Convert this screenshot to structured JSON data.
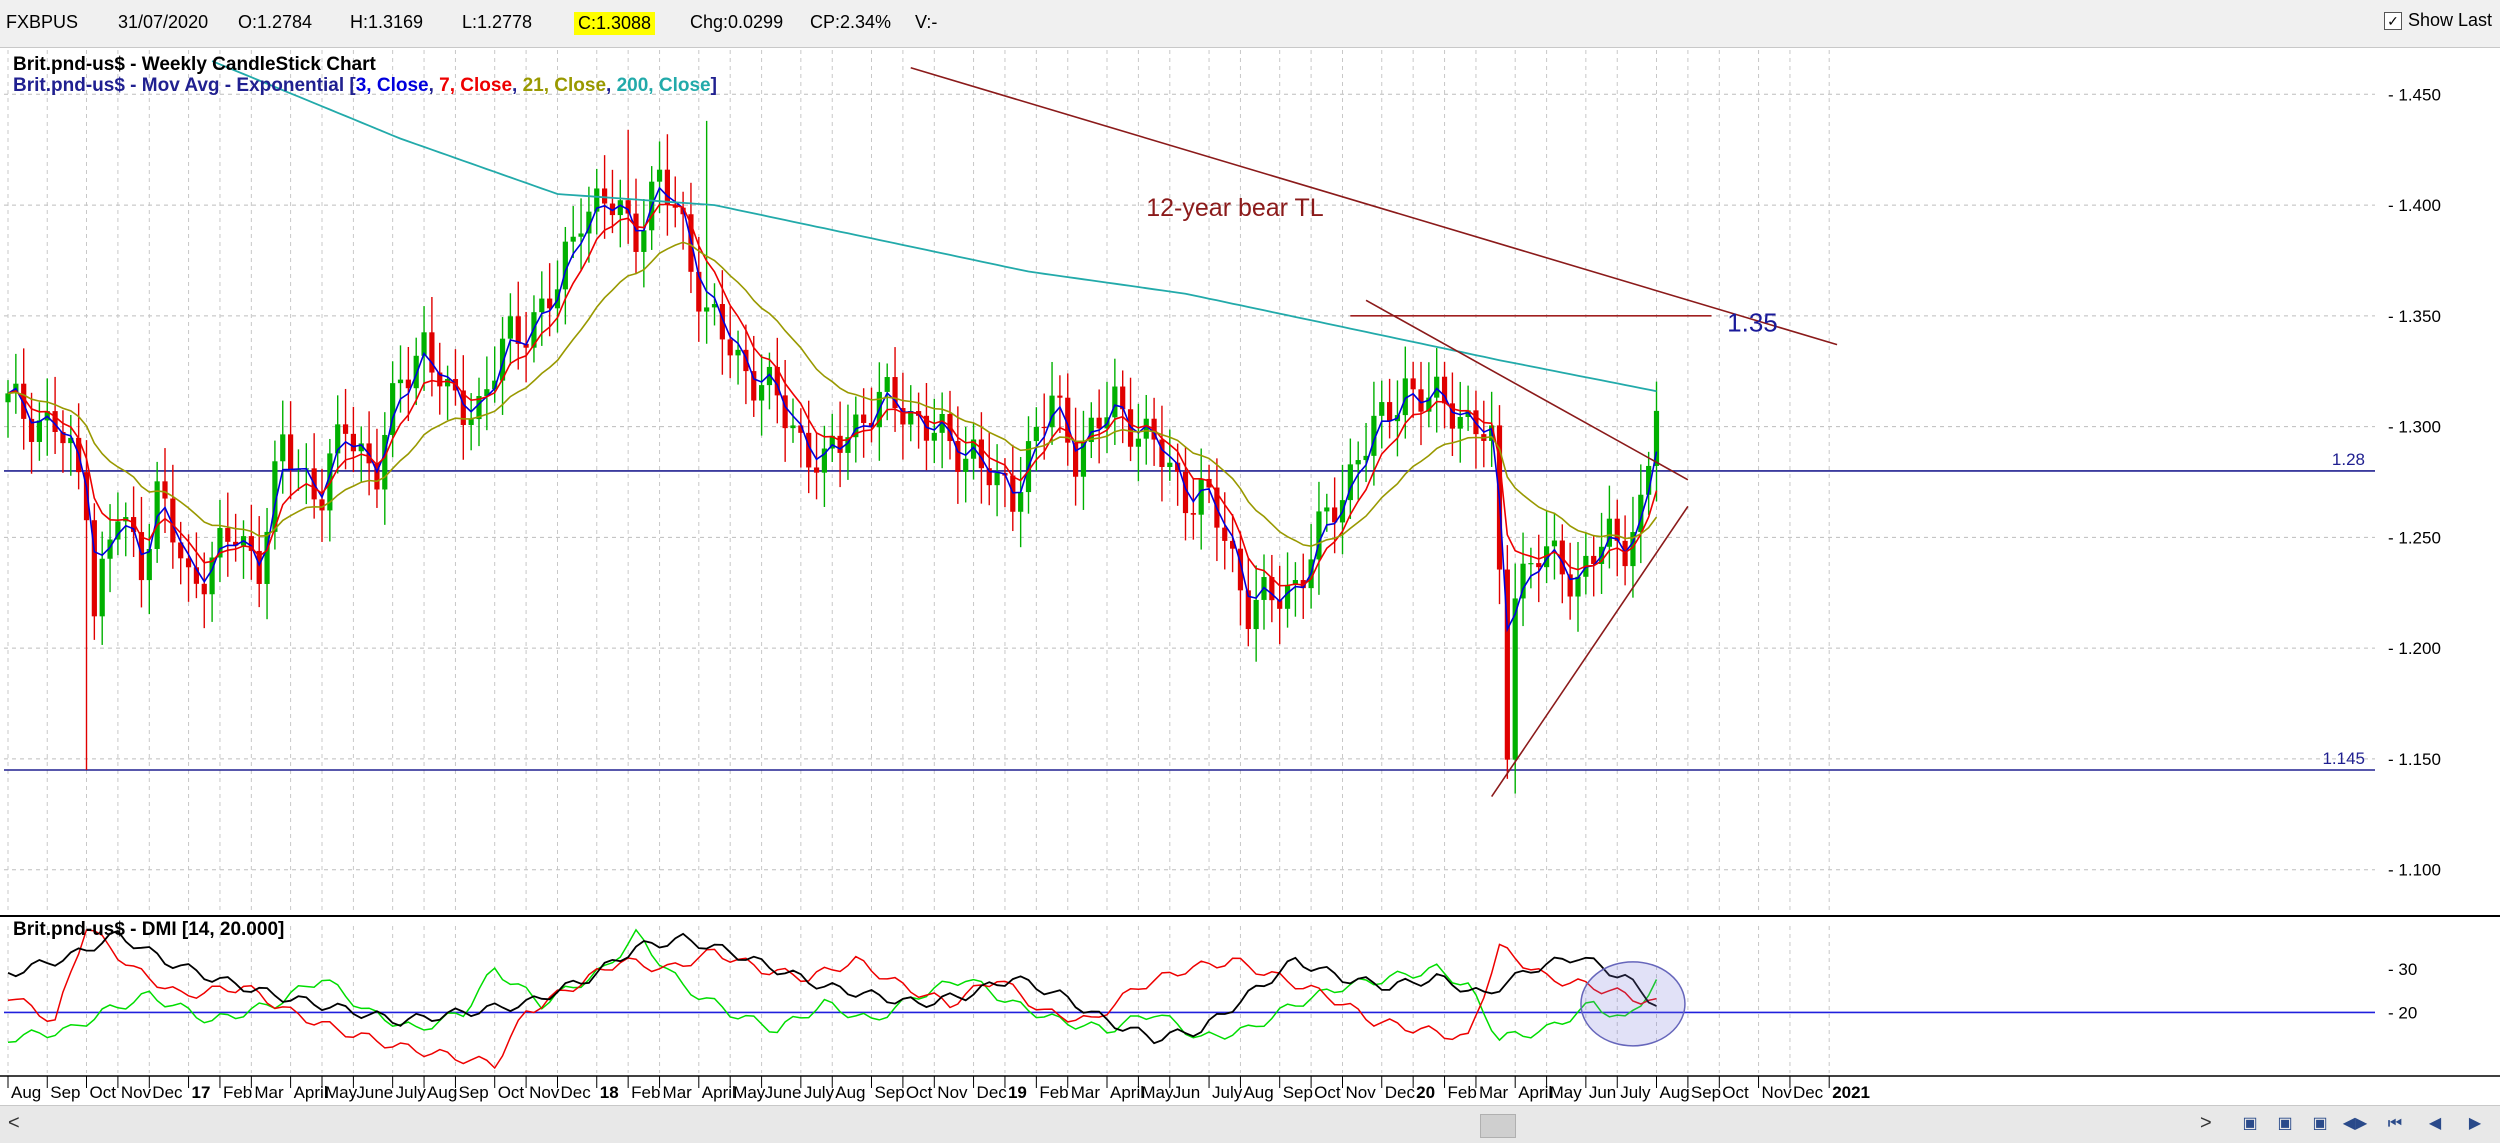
{
  "toolbar": {
    "symbol": "FXBPUS",
    "date": "31/07/2020",
    "open": "O:1.2784",
    "high": "H:1.3169",
    "low": "L:1.2778",
    "close": "C:1.3088",
    "change": "Chg:0.0299",
    "change_pct": "CP:2.34%",
    "volume": "V:-",
    "show_last_label": "Show Last",
    "show_last_checked": true
  },
  "colors": {
    "bull": "#00b000",
    "bear": "#e00000",
    "ema3": "#0000dd",
    "ema7": "#ee0000",
    "ema21": "#999900",
    "ema200": "#22aaaa",
    "hline": "#202090",
    "trend": "#8b1a1a",
    "dmi_plus": "#00dd00",
    "dmi_minus": "#ee0000",
    "adx": "#000000"
  },
  "chart_data": [
    {
      "type": "candlestick",
      "title": "Brit.pnd-us$ - Weekly CandleStick Chart",
      "subtitle_prefix": "Brit.pnd-us$ - Mov Avg - Exponential [",
      "subtitle_parts": [
        {
          "text": "3, Close",
          "color": "#0000dd"
        },
        {
          "text": ", ",
          "color": "#202090"
        },
        {
          "text": "7, Close",
          "color": "#ee0000"
        },
        {
          "text": ", ",
          "color": "#202090"
        },
        {
          "text": "21, Close",
          "color": "#999900"
        },
        {
          "text": ", ",
          "color": "#202090"
        },
        {
          "text": "200, Close",
          "color": "#22aaaa"
        }
      ],
      "subtitle_suffix": "]",
      "ylim": [
        1.08,
        1.47
      ],
      "yticks": [
        1.1,
        1.15,
        1.2,
        1.25,
        1.3,
        1.35,
        1.4,
        1.45
      ],
      "ytick_labels": [
        "1.100",
        "1.150",
        "1.200",
        "1.250",
        "1.300",
        "1.350",
        "1.400",
        "1.450"
      ],
      "anchors": [
        [
          0,
          1.31
        ],
        [
          6,
          1.3
        ],
        [
          10,
          1.27
        ],
        [
          11,
          1.22
        ],
        [
          14,
          1.26
        ],
        [
          17,
          1.24
        ],
        [
          19,
          1.27
        ],
        [
          23,
          1.23
        ],
        [
          29,
          1.25
        ],
        [
          32,
          1.24
        ],
        [
          35,
          1.29
        ],
        [
          40,
          1.27
        ],
        [
          43,
          1.3
        ],
        [
          47,
          1.28
        ],
        [
          50,
          1.32
        ],
        [
          53,
          1.34
        ],
        [
          56,
          1.31
        ],
        [
          60,
          1.31
        ],
        [
          64,
          1.34
        ],
        [
          67,
          1.35
        ],
        [
          70,
          1.36
        ],
        [
          73,
          1.4
        ],
        [
          76,
          1.4
        ],
        [
          80,
          1.39
        ],
        [
          83,
          1.41
        ],
        [
          86,
          1.39
        ],
        [
          89,
          1.35
        ],
        [
          93,
          1.33
        ],
        [
          96,
          1.32
        ],
        [
          100,
          1.3
        ],
        [
          104,
          1.28
        ],
        [
          107,
          1.3
        ],
        [
          111,
          1.31
        ],
        [
          114,
          1.31
        ],
        [
          117,
          1.3
        ],
        [
          120,
          1.29
        ],
        [
          123,
          1.29
        ],
        [
          126,
          1.27
        ],
        [
          128,
          1.27
        ],
        [
          130,
          1.29
        ],
        [
          133,
          1.31
        ],
        [
          136,
          1.29
        ],
        [
          139,
          1.3
        ],
        [
          141,
          1.31
        ],
        [
          144,
          1.3
        ],
        [
          146,
          1.29
        ],
        [
          148,
          1.28
        ],
        [
          150,
          1.27
        ],
        [
          152,
          1.27
        ],
        [
          155,
          1.25
        ],
        [
          158,
          1.22
        ],
        [
          161,
          1.22
        ],
        [
          164,
          1.23
        ],
        [
          167,
          1.25
        ],
        [
          170,
          1.27
        ],
        [
          172,
          1.29
        ],
        [
          175,
          1.3
        ],
        [
          178,
          1.32
        ],
        [
          181,
          1.31
        ],
        [
          184,
          1.31
        ],
        [
          187,
          1.3
        ],
        [
          189,
          1.29
        ],
        [
          190,
          1.23
        ],
        [
          191,
          1.16
        ],
        [
          192,
          1.23
        ],
        [
          195,
          1.24
        ],
        [
          198,
          1.24
        ],
        [
          200,
          1.23
        ],
        [
          202,
          1.24
        ],
        [
          204,
          1.25
        ],
        [
          206,
          1.25
        ],
        [
          208,
          1.26
        ],
        [
          209,
          1.28
        ],
        [
          210,
          1.31
        ]
      ],
      "candle_count": 211,
      "lows": [
        {
          "i": 10,
          "low": 1.145
        },
        {
          "i": 191,
          "low": 1.141
        }
      ],
      "highs": [
        {
          "i": 79,
          "high": 1.434
        },
        {
          "i": 89,
          "high": 1.438
        }
      ],
      "ema_periods": [
        3,
        7,
        21,
        200
      ],
      "ema200_anchors": [
        [
          26,
          1.465
        ],
        [
          50,
          1.43
        ],
        [
          70,
          1.405
        ],
        [
          90,
          1.4
        ],
        [
          110,
          1.385
        ],
        [
          130,
          1.37
        ],
        [
          150,
          1.36
        ],
        [
          170,
          1.345
        ],
        [
          190,
          1.33
        ],
        [
          210,
          1.316
        ]
      ],
      "horizontal_lines": [
        {
          "value": 1.28,
          "label": "1.28"
        },
        {
          "value": 1.145,
          "label": "1.145"
        }
      ],
      "annotations": [
        {
          "text": "12-year bear TL",
          "type": "trendline",
          "from": [
            115,
            1.462
          ],
          "to": [
            233,
            1.337
          ],
          "label_at": [
            145,
            1.395
          ]
        },
        {
          "text": "1.35",
          "type": "resistance",
          "from": [
            171,
            1.35
          ],
          "to": [
            217,
            1.35
          ],
          "label_at": [
            219,
            1.343
          ]
        },
        {
          "text": "",
          "type": "triangle_upper",
          "from": [
            173,
            1.357
          ],
          "to": [
            214,
            1.276
          ]
        },
        {
          "text": "",
          "type": "triangle_lower",
          "from": [
            189,
            1.133
          ],
          "to": [
            214,
            1.264
          ]
        }
      ]
    },
    {
      "type": "line",
      "title": "Brit.pnd-us$ - DMI [14, 20.000]",
      "ylim": [
        6,
        40
      ],
      "yticks": [
        20,
        30
      ],
      "ytick_labels": [
        "20",
        "30"
      ],
      "reference_line": 20,
      "series": [
        {
          "key": "plus",
          "anchors": [
            [
              0,
              14
            ],
            [
              8,
              16
            ],
            [
              12,
              20
            ],
            [
              18,
              24
            ],
            [
              26,
              18
            ],
            [
              34,
              22
            ],
            [
              40,
              28
            ],
            [
              46,
              20
            ],
            [
              52,
              16
            ],
            [
              58,
              20
            ],
            [
              62,
              30
            ],
            [
              68,
              22
            ],
            [
              76,
              30
            ],
            [
              80,
              38
            ],
            [
              86,
              26
            ],
            [
              92,
              20
            ],
            [
              98,
              16
            ],
            [
              104,
              22
            ],
            [
              110,
              18
            ],
            [
              116,
              24
            ],
            [
              122,
              28
            ],
            [
              128,
              22
            ],
            [
              134,
              18
            ],
            [
              140,
              16
            ],
            [
              146,
              20
            ],
            [
              152,
              14
            ],
            [
              158,
              16
            ],
            [
              164,
              22
            ],
            [
              170,
              26
            ],
            [
              176,
              28
            ],
            [
              182,
              30
            ],
            [
              186,
              26
            ],
            [
              190,
              14
            ],
            [
              196,
              16
            ],
            [
              202,
              22
            ],
            [
              206,
              18
            ],
            [
              210,
              27
            ]
          ]
        },
        {
          "key": "minus",
          "anchors": [
            [
              0,
              24
            ],
            [
              6,
              18
            ],
            [
              10,
              40
            ],
            [
              16,
              30
            ],
            [
              22,
              24
            ],
            [
              30,
              26
            ],
            [
              36,
              20
            ],
            [
              42,
              16
            ],
            [
              50,
              12
            ],
            [
              56,
              10
            ],
            [
              62,
              8
            ],
            [
              66,
              20
            ],
            [
              72,
              26
            ],
            [
              78,
              32
            ],
            [
              84,
              30
            ],
            [
              90,
              34
            ],
            [
              96,
              30
            ],
            [
              102,
              28
            ],
            [
              108,
              32
            ],
            [
              114,
              26
            ],
            [
              120,
              22
            ],
            [
              126,
              28
            ],
            [
              132,
              20
            ],
            [
              138,
              18
            ],
            [
              144,
              26
            ],
            [
              150,
              30
            ],
            [
              156,
              32
            ],
            [
              162,
              28
            ],
            [
              168,
              24
            ],
            [
              174,
              18
            ],
            [
              180,
              16
            ],
            [
              186,
              14
            ],
            [
              190,
              35
            ],
            [
              196,
              28
            ],
            [
              202,
              26
            ],
            [
              206,
              24
            ],
            [
              210,
              22
            ]
          ]
        },
        {
          "key": "adx",
          "anchors": [
            [
              0,
              29
            ],
            [
              8,
              33
            ],
            [
              14,
              38
            ],
            [
              20,
              32
            ],
            [
              26,
              28
            ],
            [
              34,
              24
            ],
            [
              42,
              21
            ],
            [
              50,
              18
            ],
            [
              58,
              20
            ],
            [
              66,
              22
            ],
            [
              74,
              28
            ],
            [
              80,
              35
            ],
            [
              86,
              37
            ],
            [
              92,
              34
            ],
            [
              98,
              30
            ],
            [
              104,
              26
            ],
            [
              110,
              24
            ],
            [
              116,
              22
            ],
            [
              122,
              24
            ],
            [
              128,
              28
            ],
            [
              134,
              24
            ],
            [
              140,
              18
            ],
            [
              146,
              14
            ],
            [
              152,
              16
            ],
            [
              158,
              24
            ],
            [
              164,
              32
            ],
            [
              170,
              28
            ],
            [
              176,
              26
            ],
            [
              182,
              28
            ],
            [
              188,
              24
            ],
            [
              194,
              30
            ],
            [
              200,
              33
            ],
            [
              206,
              28
            ],
            [
              210,
              22
            ]
          ]
        }
      ],
      "highlight": {
        "x": 207,
        "y": 22
      }
    }
  ],
  "x_axis": {
    "labels": [
      {
        "i": 0,
        "text": "Aug"
      },
      {
        "i": 5,
        "text": "Sep"
      },
      {
        "i": 10,
        "text": "Oct"
      },
      {
        "i": 14,
        "text": "Nov"
      },
      {
        "i": 18,
        "text": "Dec"
      },
      {
        "i": 23,
        "text": "17",
        "bold": true
      },
      {
        "i": 27,
        "text": "Feb"
      },
      {
        "i": 31,
        "text": "Mar"
      },
      {
        "i": 36,
        "text": "April"
      },
      {
        "i": 40,
        "text": "May"
      },
      {
        "i": 44,
        "text": "June"
      },
      {
        "i": 49,
        "text": "July"
      },
      {
        "i": 53,
        "text": "Aug"
      },
      {
        "i": 57,
        "text": "Sep"
      },
      {
        "i": 62,
        "text": "Oct"
      },
      {
        "i": 66,
        "text": "Nov"
      },
      {
        "i": 70,
        "text": "Dec"
      },
      {
        "i": 75,
        "text": "18",
        "bold": true
      },
      {
        "i": 79,
        "text": "Feb"
      },
      {
        "i": 83,
        "text": "Mar"
      },
      {
        "i": 88,
        "text": "April"
      },
      {
        "i": 92,
        "text": "May"
      },
      {
        "i": 96,
        "text": "June"
      },
      {
        "i": 101,
        "text": "July"
      },
      {
        "i": 105,
        "text": "Aug"
      },
      {
        "i": 110,
        "text": "Sep"
      },
      {
        "i": 114,
        "text": "Oct"
      },
      {
        "i": 118,
        "text": "Nov"
      },
      {
        "i": 123,
        "text": "Dec"
      },
      {
        "i": 127,
        "text": "19",
        "bold": true
      },
      {
        "i": 131,
        "text": "Feb"
      },
      {
        "i": 135,
        "text": "Mar"
      },
      {
        "i": 140,
        "text": "April"
      },
      {
        "i": 144,
        "text": "May"
      },
      {
        "i": 148,
        "text": "Jun"
      },
      {
        "i": 153,
        "text": "July"
      },
      {
        "i": 157,
        "text": "Aug"
      },
      {
        "i": 162,
        "text": "Sep"
      },
      {
        "i": 166,
        "text": "Oct"
      },
      {
        "i": 170,
        "text": "Nov"
      },
      {
        "i": 175,
        "text": "Dec"
      },
      {
        "i": 179,
        "text": "20",
        "bold": true
      },
      {
        "i": 183,
        "text": "Feb"
      },
      {
        "i": 187,
        "text": "Mar"
      },
      {
        "i": 192,
        "text": "April"
      },
      {
        "i": 196,
        "text": "May"
      },
      {
        "i": 201,
        "text": "Jun"
      },
      {
        "i": 205,
        "text": "July"
      },
      {
        "i": 210,
        "text": "Aug"
      },
      {
        "i": 214,
        "text": "Sep"
      },
      {
        "i": 218,
        "text": "Oct"
      },
      {
        "i": 223,
        "text": "Nov"
      },
      {
        "i": 227,
        "text": "Dec"
      },
      {
        "i": 232,
        "text": "2021",
        "bold": true
      }
    ]
  },
  "scrollbar": {
    "left_arrow": "<",
    "right_arrow": ">",
    "nav_icons": [
      "zoom-out-icon",
      "zoom-in-icon",
      "compress-icon",
      "scroll-start-icon",
      "scroll-end-icon",
      "prev-icon",
      "next-icon"
    ]
  }
}
